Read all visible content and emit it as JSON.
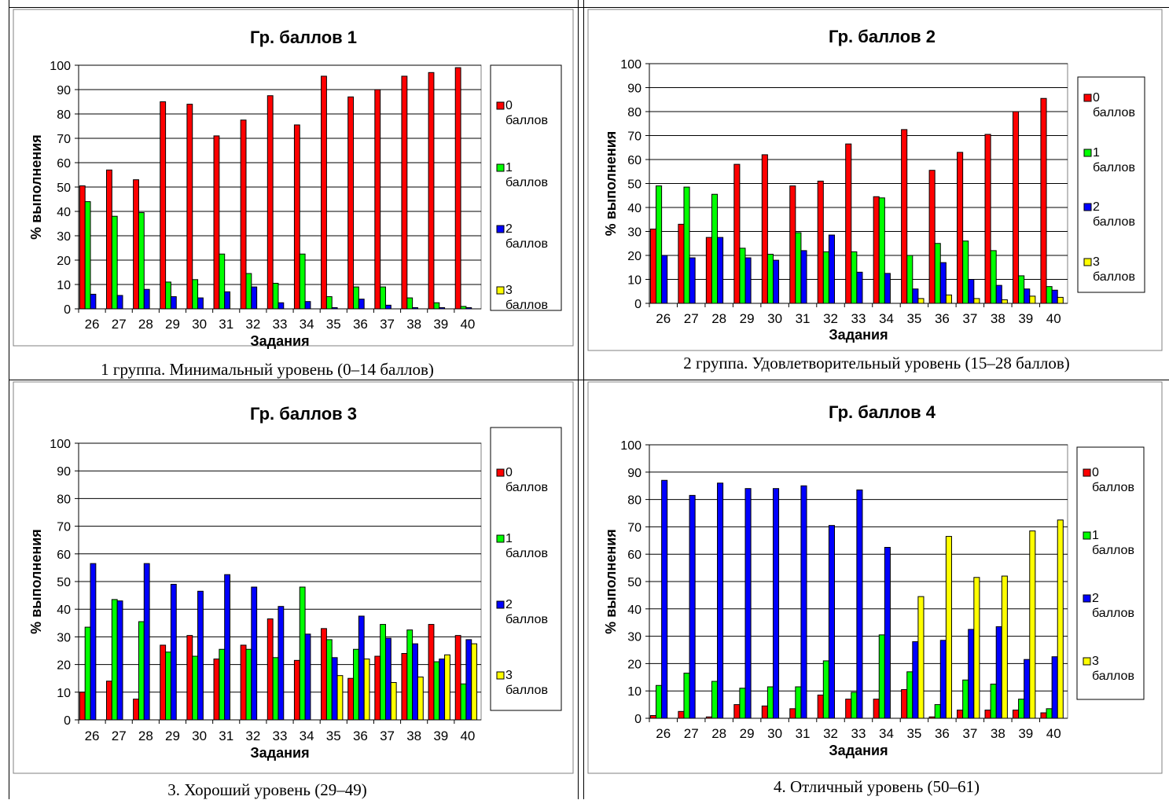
{
  "colors": {
    "s0": "#ff0000",
    "s1": "#00ff00",
    "s2": "#0000ff",
    "s3": "#ffff00",
    "grid": "#000000",
    "frame": "#808080"
  },
  "chart_data": [
    {
      "type": "bar",
      "title": "Гр. баллов 1",
      "xlabel": "Задания",
      "ylabel": "% выполнения",
      "ylim": [
        0,
        100
      ],
      "yticks": [
        "0",
        "10",
        "20",
        "30",
        "40",
        "50",
        "60",
        "70",
        "80",
        "90",
        "100"
      ],
      "grid": true,
      "legend_position": "right",
      "categories": [
        "26",
        "27",
        "28",
        "29",
        "30",
        "31",
        "32",
        "33",
        "34",
        "35",
        "36",
        "37",
        "38",
        "39",
        "40"
      ],
      "series": [
        {
          "name": "0 баллов",
          "name_line1": "0",
          "name_line2": "баллов",
          "color": "#ff0000",
          "values": [
            50.5,
            57,
            53,
            85,
            84,
            71,
            77.5,
            87.5,
            75.5,
            95.5,
            87,
            90,
            95.5,
            97,
            99
          ]
        },
        {
          "name": "1 баллов",
          "name_line1": "1",
          "name_line2": "баллов",
          "color": "#00ff00",
          "values": [
            44,
            38,
            39.5,
            11,
            12,
            22.5,
            14.5,
            10.5,
            22.5,
            5,
            9,
            9,
            4.5,
            2.5,
            1
          ]
        },
        {
          "name": "2 баллов",
          "name_line1": "2",
          "name_line2": "баллов",
          "color": "#0000ff",
          "values": [
            6,
            5.5,
            8,
            5,
            4.5,
            7,
            9,
            2.5,
            3,
            0.5,
            4,
            1.5,
            0.5,
            0.5,
            0.5
          ]
        },
        {
          "name": "3 баллов",
          "name_line1": "3",
          "name_line2": "баллов",
          "color": "#ffff00",
          "values": [
            0,
            0,
            0,
            0,
            0,
            0,
            0,
            0,
            0,
            0,
            0,
            0,
            0,
            0,
            0
          ]
        }
      ],
      "caption": "1 группа. Минимальный уровень (0–14 баллов)"
    },
    {
      "type": "bar",
      "title": "Гр. баллов 2",
      "xlabel": "Задания",
      "ylabel": "% выполнения",
      "ylim": [
        0,
        100
      ],
      "yticks": [
        "0",
        "10",
        "20",
        "30",
        "40",
        "50",
        "60",
        "70",
        "80",
        "90",
        "100"
      ],
      "grid": true,
      "legend_position": "right",
      "categories": [
        "26",
        "27",
        "28",
        "29",
        "30",
        "31",
        "32",
        "33",
        "34",
        "35",
        "36",
        "37",
        "38",
        "39",
        "40"
      ],
      "series": [
        {
          "name": "0 баллов",
          "name_line1": "0",
          "name_line2": "баллов",
          "color": "#ff0000",
          "values": [
            31,
            33,
            27.5,
            58,
            62,
            49,
            51,
            66.5,
            44.5,
            72.5,
            55.5,
            63,
            70.5,
            80,
            85.5
          ]
        },
        {
          "name": "1 баллов",
          "name_line1": "1",
          "name_line2": "баллов",
          "color": "#00ff00",
          "values": [
            49,
            48.5,
            45.5,
            23,
            20.5,
            29.5,
            21.5,
            21.5,
            44,
            20,
            25,
            26,
            22,
            11.5,
            7
          ]
        },
        {
          "name": "2 баллов",
          "name_line1": "2",
          "name_line2": "баллов",
          "color": "#0000ff",
          "values": [
            20,
            19,
            27.5,
            19,
            18,
            22,
            28.5,
            13,
            12.5,
            6,
            17,
            10,
            7.5,
            6,
            5.5
          ]
        },
        {
          "name": "3 баллов",
          "name_line1": "3",
          "name_line2": "баллов",
          "color": "#ffff00",
          "values": [
            0,
            0,
            0,
            0,
            0,
            0,
            0,
            0,
            0,
            2,
            3.5,
            2,
            1.5,
            3,
            2.5
          ]
        }
      ],
      "caption": "2 группа. Удовлетворительный уровень (15–28 баллов)"
    },
    {
      "type": "bar",
      "title": "Гр. баллов 3",
      "xlabel": "Задания",
      "ylabel": "% выполнения",
      "ylim": [
        0,
        100
      ],
      "yticks": [
        "0",
        "10",
        "20",
        "30",
        "40",
        "50",
        "60",
        "70",
        "80",
        "90",
        "100"
      ],
      "grid": true,
      "legend_position": "right",
      "categories": [
        "26",
        "27",
        "28",
        "29",
        "30",
        "31",
        "32",
        "33",
        "34",
        "35",
        "36",
        "37",
        "38",
        "39",
        "40"
      ],
      "series": [
        {
          "name": "0 баллов",
          "name_line1": "0",
          "name_line2": "баллов",
          "color": "#ff0000",
          "values": [
            10,
            14,
            7.5,
            27,
            30.5,
            22,
            27,
            36.5,
            21.5,
            33,
            15,
            23,
            24,
            34.5,
            30.5
          ]
        },
        {
          "name": "1 баллов",
          "name_line1": "1",
          "name_line2": "баллов",
          "color": "#00ff00",
          "values": [
            33.5,
            43.5,
            35.5,
            24.5,
            23,
            25.5,
            25.5,
            22.5,
            48,
            29,
            25.5,
            34.5,
            32.5,
            21,
            13
          ]
        },
        {
          "name": "2 баллов",
          "name_line1": "2",
          "name_line2": "баллов",
          "color": "#0000ff",
          "values": [
            56.5,
            43,
            56.5,
            49,
            46.5,
            52.5,
            48,
            41,
            31,
            22.5,
            37.5,
            29.5,
            27.5,
            22,
            29
          ]
        },
        {
          "name": "3 баллов",
          "name_line1": "3",
          "name_line2": "баллов",
          "color": "#ffff00",
          "values": [
            0,
            0,
            0,
            0,
            0,
            0,
            0,
            0,
            0,
            16,
            22,
            13.5,
            15.5,
            23.5,
            27.5
          ]
        }
      ],
      "caption": "3. Хороший уровень (29–49)"
    },
    {
      "type": "bar",
      "title": "Гр. баллов 4",
      "xlabel": "Задания",
      "ylabel": "% выполнения",
      "ylim": [
        0,
        100
      ],
      "yticks": [
        "0",
        "10",
        "20",
        "30",
        "40",
        "50",
        "60",
        "70",
        "80",
        "90",
        "100"
      ],
      "grid": true,
      "legend_position": "right",
      "categories": [
        "26",
        "27",
        "28",
        "29",
        "30",
        "31",
        "32",
        "33",
        "34",
        "35",
        "36",
        "37",
        "38",
        "39",
        "40"
      ],
      "series": [
        {
          "name": "0 баллов",
          "name_line1": "0",
          "name_line2": "баллов",
          "color": "#ff0000",
          "values": [
            1,
            2.5,
            0.5,
            5,
            4.5,
            3.5,
            8.5,
            7,
            7,
            10.5,
            0.5,
            3,
            3,
            3,
            2
          ]
        },
        {
          "name": "1 баллов",
          "name_line1": "1",
          "name_line2": "баллов",
          "color": "#00ff00",
          "values": [
            12,
            16.5,
            13.5,
            11,
            11.5,
            11.5,
            21,
            9.5,
            30.5,
            17,
            5,
            14,
            12.5,
            7,
            3.5
          ]
        },
        {
          "name": "2 баллов",
          "name_line1": "2",
          "name_line2": "баллов",
          "color": "#0000ff",
          "values": [
            87,
            81.5,
            86,
            84,
            84,
            85,
            70.5,
            83.5,
            62.5,
            28,
            28.5,
            32.5,
            33.5,
            21.5,
            22.5
          ]
        },
        {
          "name": "3 баллов",
          "name_line1": "3",
          "name_line2": "баллов",
          "color": "#ffff00",
          "values": [
            0,
            0,
            0,
            0,
            0,
            0,
            0,
            0,
            0,
            44.5,
            66.5,
            51.5,
            52,
            68.5,
            72.5
          ]
        }
      ],
      "caption": "4. Отличный уровень (50–61)"
    }
  ]
}
